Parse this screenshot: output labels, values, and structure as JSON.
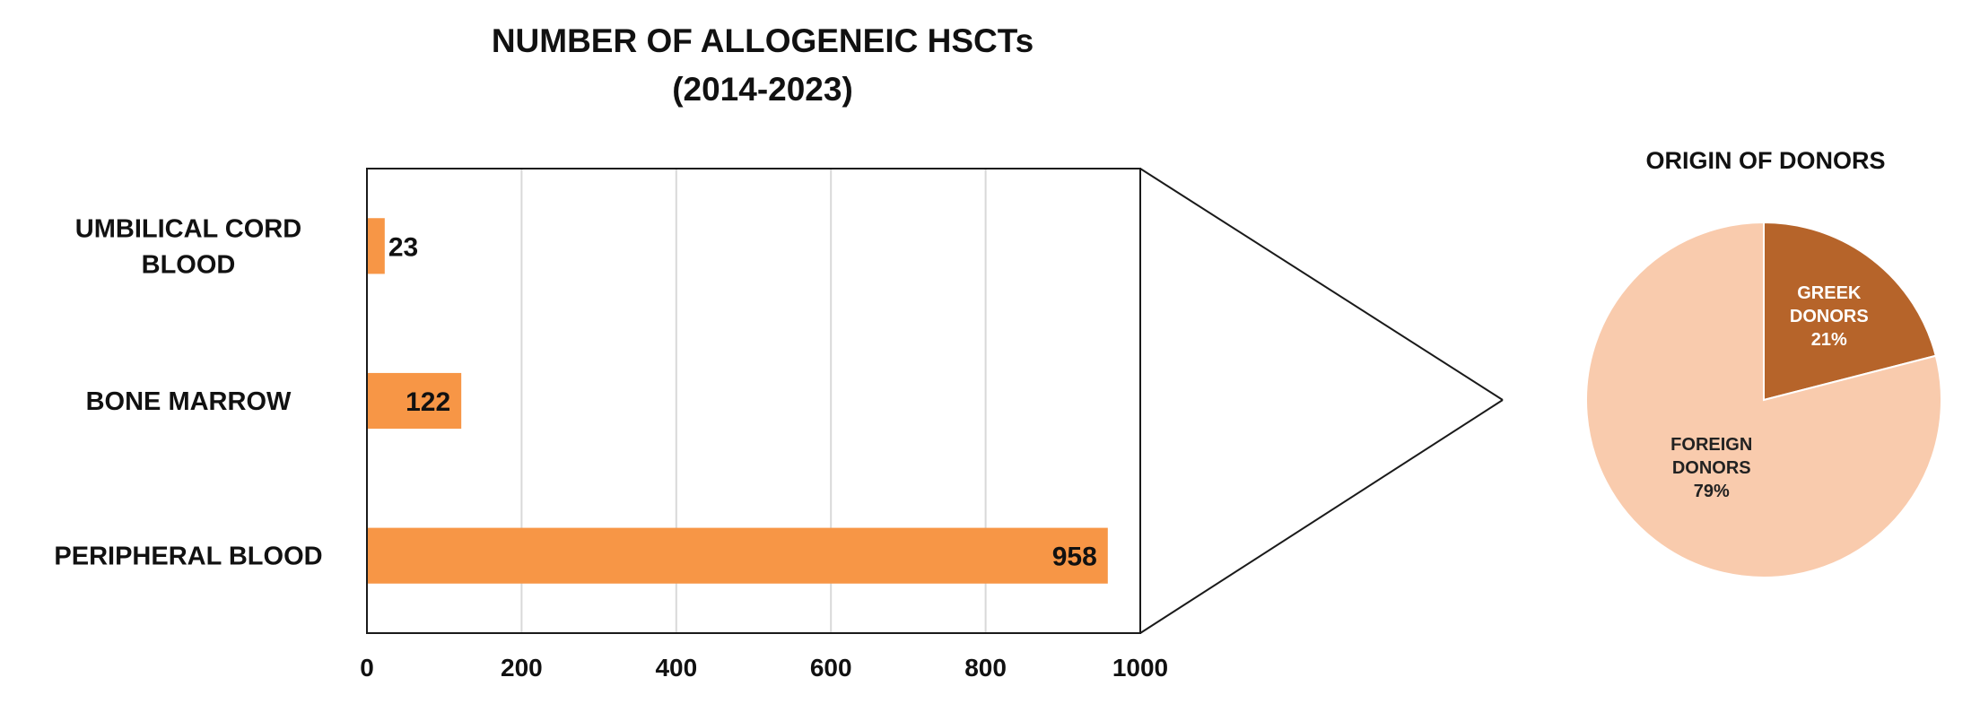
{
  "chart_data": [
    {
      "type": "bar",
      "orientation": "horizontal",
      "title": "NUMBER OF ALLOGENEIC HSCTs",
      "subtitle": "(2014-2023)",
      "categories": [
        [
          "UMBILICAL CORD",
          "BLOOD"
        ],
        [
          "BONE MARROW"
        ],
        [
          "PERIPHERAL BLOOD"
        ]
      ],
      "values": [
        23,
        122,
        958
      ],
      "data_labels": [
        "23",
        "122",
        "958"
      ],
      "xlim": [
        0,
        1000
      ],
      "xticks": [
        0,
        200,
        400,
        600,
        800,
        1000
      ],
      "grid": "vertical",
      "legend": "none",
      "bar_color": "#F79646"
    },
    {
      "type": "pie",
      "title": "ORIGIN OF DONORS",
      "slices": [
        {
          "label": [
            "GREEK",
            "DONORS",
            "21%"
          ],
          "value": 21,
          "color": "#B6642A",
          "text_color": "#FFFFFF"
        },
        {
          "label": [
            "FOREIGN",
            "DONORS",
            "79%"
          ],
          "value": 79,
          "color": "#F9CBAD",
          "text_color": "#222222"
        }
      ],
      "legend": "none"
    }
  ]
}
